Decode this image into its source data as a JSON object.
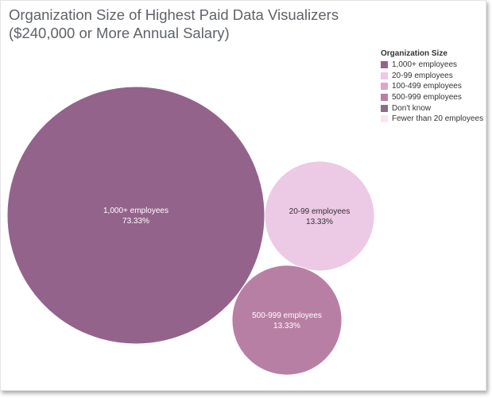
{
  "chart_data": {
    "type": "bubble",
    "title": [
      "Organization Size of Highest Paid Data Visualizers",
      "($240,000 or More Annual Salary)"
    ],
    "legend": {
      "title": "Organization Size",
      "placement": "top-right",
      "items": [
        {
          "label": "1,000+ employees",
          "color": "#93638c"
        },
        {
          "label": "20-99 employees",
          "color": "#ecc9e4"
        },
        {
          "label": "100-499 employees",
          "color": "#dba7cb"
        },
        {
          "label": "500-999 employees",
          "color": "#b87fa4"
        },
        {
          "label": "Don't know",
          "color": "#8a7084"
        },
        {
          "label": "Fewer than 20 employees",
          "color": "#f9e6f3"
        }
      ]
    },
    "bubbles": [
      {
        "label": "1,000+ employees",
        "value": 73.33,
        "value_label": "73.33%",
        "color": "#93638c",
        "text_color": "#ffffff"
      },
      {
        "label": "20-99 employees",
        "value": 13.33,
        "value_label": "13.33%",
        "color": "#ecc9e4",
        "text_color": "#333333"
      },
      {
        "label": "500-999 employees",
        "value": 13.33,
        "value_label": "13.33%",
        "color": "#b87fa4",
        "text_color": "#ffffff"
      }
    ]
  }
}
